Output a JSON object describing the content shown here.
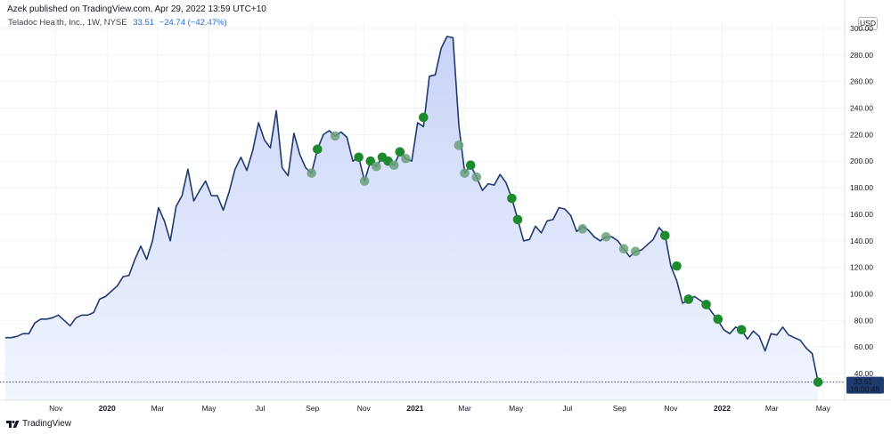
{
  "attribution": "Azek published on TradingView.com, Apr 29, 2022 13:59 UTC+10",
  "legend": {
    "symbol": "Teladoc Health, Inc., 1W, NYSE",
    "price": "33.51",
    "change": "−24.74 (−42.47%)"
  },
  "currency_button": "USD",
  "last_price_label": {
    "price": "33.51",
    "time": "16:00:48"
  },
  "footer": {
    "brand": "TradingView"
  },
  "colors": {
    "line": "#1e3a6e",
    "area_top": "#c9d3f7",
    "area_bottom": "#f2f5fe",
    "marker_green": "#1e8a2e",
    "marker_faded": "#6aa07a",
    "price_tag": "#1e3a6e",
    "last_price_dotted": "#1e3a6e"
  },
  "chart_data": {
    "type": "area",
    "title": "Teladoc Health, Inc., 1W, NYSE",
    "ylim": [
      25,
      305
    ],
    "y_ticks": [
      40,
      60,
      80,
      100,
      120,
      140,
      160,
      180,
      200,
      220,
      240,
      260,
      280,
      300
    ],
    "y_tick_labels": [
      "40.00",
      "60.00",
      "80.00",
      "100.00",
      "120.00",
      "140.00",
      "160.00",
      "180.00",
      "200.00",
      "220.00",
      "240.00",
      "260.00",
      "280.00",
      "300.00"
    ],
    "x_range": [
      "2019-09-02",
      "2022-05-16"
    ],
    "x_ticks": [
      {
        "date": "2019-11-01",
        "label": "Nov",
        "bold": false
      },
      {
        "date": "2020-01-01",
        "label": "2020",
        "bold": true
      },
      {
        "date": "2020-03-01",
        "label": "Mar",
        "bold": false
      },
      {
        "date": "2020-05-01",
        "label": "May",
        "bold": false
      },
      {
        "date": "2020-07-01",
        "label": "Jul",
        "bold": false
      },
      {
        "date": "2020-09-01",
        "label": "Sep",
        "bold": false
      },
      {
        "date": "2020-11-01",
        "label": "Nov",
        "bold": false
      },
      {
        "date": "2021-01-01",
        "label": "2021",
        "bold": true
      },
      {
        "date": "2021-03-01",
        "label": "Mar",
        "bold": false
      },
      {
        "date": "2021-05-01",
        "label": "May",
        "bold": false
      },
      {
        "date": "2021-07-01",
        "label": "Jul",
        "bold": false
      },
      {
        "date": "2021-09-01",
        "label": "Sep",
        "bold": false
      },
      {
        "date": "2021-11-01",
        "label": "Nov",
        "bold": false
      },
      {
        "date": "2022-01-01",
        "label": "2022",
        "bold": true
      },
      {
        "date": "2022-03-01",
        "label": "Mar",
        "bold": false
      },
      {
        "date": "2022-05-01",
        "label": "May",
        "bold": false
      }
    ],
    "series": [
      {
        "points": [
          [
            "2019-09-02",
            67
          ],
          [
            "2019-09-09",
            67
          ],
          [
            "2019-09-16",
            68
          ],
          [
            "2019-09-23",
            70
          ],
          [
            "2019-09-30",
            70
          ],
          [
            "2019-10-07",
            78
          ],
          [
            "2019-10-14",
            81
          ],
          [
            "2019-10-21",
            81
          ],
          [
            "2019-10-28",
            82
          ],
          [
            "2019-11-04",
            84
          ],
          [
            "2019-11-11",
            80
          ],
          [
            "2019-11-18",
            76
          ],
          [
            "2019-11-25",
            82
          ],
          [
            "2019-12-02",
            84
          ],
          [
            "2019-12-09",
            84
          ],
          [
            "2019-12-16",
            86
          ],
          [
            "2019-12-23",
            96
          ],
          [
            "2019-12-30",
            98
          ],
          [
            "2020-01-06",
            102
          ],
          [
            "2020-01-13",
            106
          ],
          [
            "2020-01-20",
            113
          ],
          [
            "2020-01-27",
            114
          ],
          [
            "2020-02-03",
            126
          ],
          [
            "2020-02-10",
            136
          ],
          [
            "2020-02-17",
            126
          ],
          [
            "2020-02-24",
            140
          ],
          [
            "2020-03-02",
            165
          ],
          [
            "2020-03-09",
            155
          ],
          [
            "2020-03-16",
            140
          ],
          [
            "2020-03-23",
            166
          ],
          [
            "2020-03-30",
            174
          ],
          [
            "2020-04-06",
            194
          ],
          [
            "2020-04-13",
            170
          ],
          [
            "2020-04-20",
            178
          ],
          [
            "2020-04-27",
            185
          ],
          [
            "2020-05-04",
            174
          ],
          [
            "2020-05-11",
            174
          ],
          [
            "2020-05-18",
            163
          ],
          [
            "2020-05-25",
            177
          ],
          [
            "2020-06-01",
            194
          ],
          [
            "2020-06-08",
            203
          ],
          [
            "2020-06-15",
            193
          ],
          [
            "2020-06-22",
            208
          ],
          [
            "2020-06-29",
            229
          ],
          [
            "2020-07-06",
            216
          ],
          [
            "2020-07-13",
            210
          ],
          [
            "2020-07-20",
            238
          ],
          [
            "2020-07-27",
            195
          ],
          [
            "2020-08-03",
            189
          ],
          [
            "2020-08-10",
            221
          ],
          [
            "2020-08-17",
            205
          ],
          [
            "2020-08-24",
            195
          ],
          [
            "2020-08-31",
            191
          ],
          [
            "2020-09-07",
            209
          ],
          [
            "2020-09-14",
            220
          ],
          [
            "2020-09-21",
            223
          ],
          [
            "2020-09-28",
            219
          ],
          [
            "2020-10-05",
            222
          ],
          [
            "2020-10-12",
            218
          ],
          [
            "2020-10-19",
            200
          ],
          [
            "2020-10-26",
            203
          ],
          [
            "2020-11-02",
            185
          ],
          [
            "2020-11-09",
            200
          ],
          [
            "2020-11-16",
            196
          ],
          [
            "2020-11-23",
            203
          ],
          [
            "2020-11-30",
            200
          ],
          [
            "2020-12-07",
            197
          ],
          [
            "2020-12-14",
            207
          ],
          [
            "2020-12-21",
            202
          ],
          [
            "2020-12-28",
            200
          ],
          [
            "2021-01-04",
            229
          ],
          [
            "2021-01-11",
            226
          ],
          [
            "2021-01-18",
            264
          ],
          [
            "2021-01-25",
            265
          ],
          [
            "2021-02-01",
            285
          ],
          [
            "2021-02-08",
            294
          ],
          [
            "2021-02-15",
            293
          ],
          [
            "2021-02-22",
            227
          ],
          [
            "2021-03-01",
            191
          ],
          [
            "2021-03-08",
            197
          ],
          [
            "2021-03-15",
            188
          ],
          [
            "2021-03-22",
            178
          ],
          [
            "2021-03-29",
            183
          ],
          [
            "2021-04-05",
            182
          ],
          [
            "2021-04-12",
            190
          ],
          [
            "2021-04-19",
            184
          ],
          [
            "2021-04-26",
            172
          ],
          [
            "2021-05-03",
            156
          ],
          [
            "2021-05-10",
            140
          ],
          [
            "2021-05-17",
            141
          ],
          [
            "2021-05-24",
            151
          ],
          [
            "2021-05-31",
            146
          ],
          [
            "2021-06-07",
            155
          ],
          [
            "2021-06-14",
            156
          ],
          [
            "2021-06-21",
            165
          ],
          [
            "2021-06-28",
            164
          ],
          [
            "2021-07-05",
            159
          ],
          [
            "2021-07-12",
            147
          ],
          [
            "2021-07-19",
            151
          ],
          [
            "2021-07-26",
            148
          ],
          [
            "2021-08-02",
            143
          ],
          [
            "2021-08-09",
            140
          ],
          [
            "2021-08-16",
            143
          ],
          [
            "2021-08-23",
            143
          ],
          [
            "2021-08-30",
            140
          ],
          [
            "2021-09-06",
            134
          ],
          [
            "2021-09-13",
            128
          ],
          [
            "2021-09-20",
            132
          ],
          [
            "2021-09-27",
            133
          ],
          [
            "2021-10-04",
            137
          ],
          [
            "2021-10-11",
            141
          ],
          [
            "2021-10-18",
            150
          ],
          [
            "2021-10-25",
            145
          ],
          [
            "2021-11-01",
            121
          ],
          [
            "2021-11-08",
            110
          ],
          [
            "2021-11-15",
            93
          ],
          [
            "2021-11-22",
            95
          ],
          [
            "2021-11-29",
            98
          ],
          [
            "2021-12-06",
            95
          ],
          [
            "2021-12-13",
            92
          ],
          [
            "2021-12-20",
            86
          ],
          [
            "2021-12-27",
            80
          ],
          [
            "2022-01-03",
            73
          ],
          [
            "2022-01-10",
            70
          ],
          [
            "2022-01-17",
            75
          ],
          [
            "2022-01-24",
            73
          ],
          [
            "2022-01-31",
            66
          ],
          [
            "2022-02-07",
            72
          ],
          [
            "2022-02-14",
            68
          ],
          [
            "2022-02-21",
            57
          ],
          [
            "2022-02-28",
            70
          ],
          [
            "2022-03-07",
            69
          ],
          [
            "2022-03-14",
            75
          ],
          [
            "2022-03-21",
            69
          ],
          [
            "2022-03-28",
            67
          ],
          [
            "2022-04-04",
            65
          ],
          [
            "2022-04-11",
            59
          ],
          [
            "2022-04-18",
            55
          ],
          [
            "2022-04-25",
            33.51
          ]
        ]
      }
    ],
    "markers": [
      {
        "date": "2020-08-31",
        "value": 191,
        "style": "faded"
      },
      {
        "date": "2020-09-07",
        "value": 209,
        "style": "green"
      },
      {
        "date": "2020-09-28",
        "value": 219,
        "style": "faded"
      },
      {
        "date": "2020-10-26",
        "value": 203,
        "style": "green"
      },
      {
        "date": "2020-11-02",
        "value": 185,
        "style": "faded"
      },
      {
        "date": "2020-11-09",
        "value": 200,
        "style": "green"
      },
      {
        "date": "2020-11-16",
        "value": 196,
        "style": "faded"
      },
      {
        "date": "2020-11-23",
        "value": 203,
        "style": "green"
      },
      {
        "date": "2020-11-30",
        "value": 200,
        "style": "green"
      },
      {
        "date": "2020-12-07",
        "value": 197,
        "style": "faded"
      },
      {
        "date": "2020-12-14",
        "value": 207,
        "style": "green"
      },
      {
        "date": "2020-12-21",
        "value": 202,
        "style": "faded"
      },
      {
        "date": "2021-01-11",
        "value": 233,
        "style": "green"
      },
      {
        "date": "2021-02-22",
        "value": 212,
        "style": "faded"
      },
      {
        "date": "2021-03-01",
        "value": 191,
        "style": "faded"
      },
      {
        "date": "2021-03-08",
        "value": 197,
        "style": "green"
      },
      {
        "date": "2021-03-15",
        "value": 188,
        "style": "faded"
      },
      {
        "date": "2021-04-26",
        "value": 172,
        "style": "green"
      },
      {
        "date": "2021-05-03",
        "value": 156,
        "style": "green"
      },
      {
        "date": "2021-07-19",
        "value": 149,
        "style": "faded"
      },
      {
        "date": "2021-08-16",
        "value": 143,
        "style": "faded"
      },
      {
        "date": "2021-09-06",
        "value": 134,
        "style": "faded"
      },
      {
        "date": "2021-09-20",
        "value": 132,
        "style": "faded"
      },
      {
        "date": "2021-10-25",
        "value": 144,
        "style": "green"
      },
      {
        "date": "2021-11-08",
        "value": 121,
        "style": "green"
      },
      {
        "date": "2021-11-22",
        "value": 96,
        "style": "green"
      },
      {
        "date": "2021-12-13",
        "value": 92,
        "style": "green"
      },
      {
        "date": "2021-12-27",
        "value": 81,
        "style": "green"
      },
      {
        "date": "2022-01-24",
        "value": 73,
        "style": "green"
      },
      {
        "date": "2022-04-25",
        "value": 33.51,
        "style": "green"
      }
    ]
  }
}
